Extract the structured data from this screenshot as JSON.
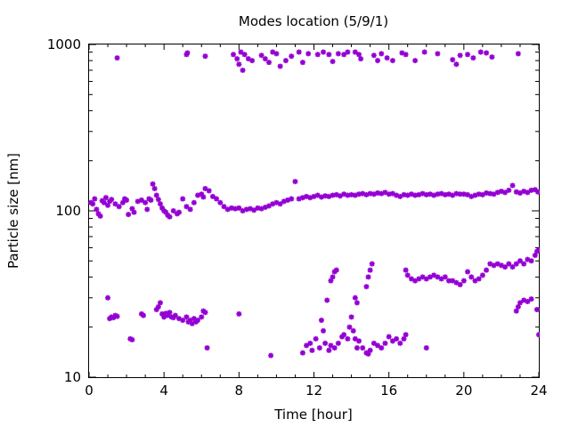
{
  "chart_data": {
    "type": "scatter",
    "title": "Modes location (5/9/1)",
    "xlabel": "Time [hour]",
    "ylabel": "Particle size [nm]",
    "xlim": [
      0,
      24
    ],
    "ylim": [
      10,
      1000
    ],
    "y_scale": "log",
    "x_ticks": [
      0,
      4,
      8,
      12,
      16,
      20,
      24
    ],
    "x_tick_labels": [
      "0",
      "4",
      "8",
      "12",
      "16",
      "20",
      "24"
    ],
    "y_ticks": [
      10,
      100,
      1000
    ],
    "y_tick_labels": [
      "10",
      "100",
      "1000"
    ],
    "grid": false,
    "marker": "asterisk",
    "color": "#9400d3",
    "series": [
      {
        "values": [
          [
            0.1,
            112
          ],
          [
            0.2,
            110
          ],
          [
            0.3,
            118
          ],
          [
            0.4,
            102
          ],
          [
            0.5,
            96
          ],
          [
            0.6,
            93
          ],
          [
            0.7,
            115
          ],
          [
            0.8,
            112
          ],
          [
            0.9,
            120
          ],
          [
            1.0,
            108
          ],
          [
            1.1,
            114
          ],
          [
            1.2,
            117
          ],
          [
            1.4,
            110
          ],
          [
            1.6,
            106
          ],
          [
            1.8,
            112
          ],
          [
            1.9,
            118
          ],
          [
            2.0,
            116
          ],
          [
            2.1,
            95
          ],
          [
            2.3,
            103
          ],
          [
            2.4,
            98
          ],
          [
            2.6,
            114
          ],
          [
            2.8,
            116
          ],
          [
            3.0,
            112
          ],
          [
            3.1,
            102
          ],
          [
            3.2,
            118
          ],
          [
            3.3,
            116
          ],
          [
            3.4,
            145
          ],
          [
            3.5,
            136
          ],
          [
            3.6,
            124
          ],
          [
            3.7,
            117
          ],
          [
            3.8,
            110
          ],
          [
            3.9,
            104
          ],
          [
            4.0,
            100
          ],
          [
            4.1,
            98
          ],
          [
            4.2,
            94
          ],
          [
            4.3,
            92
          ],
          [
            4.5,
            100
          ],
          [
            4.7,
            96
          ],
          [
            4.8,
            98
          ],
          [
            5.0,
            118
          ],
          [
            5.2,
            106
          ],
          [
            5.4,
            102
          ],
          [
            5.6,
            112
          ],
          [
            5.8,
            124
          ],
          [
            6.0,
            126
          ],
          [
            6.1,
            121
          ],
          [
            6.2,
            136
          ],
          [
            6.4,
            132
          ],
          [
            6.6,
            122
          ],
          [
            6.8,
            118
          ],
          [
            7.0,
            112
          ],
          [
            7.2,
            106
          ],
          [
            7.4,
            102
          ],
          [
            7.6,
            104
          ],
          [
            7.8,
            103
          ],
          [
            8.0,
            104
          ],
          [
            8.2,
            100
          ],
          [
            8.4,
            102
          ],
          [
            8.6,
            103
          ],
          [
            8.8,
            101
          ],
          [
            9.0,
            104
          ],
          [
            9.2,
            103
          ],
          [
            9.4,
            105
          ],
          [
            9.6,
            107
          ],
          [
            9.8,
            110
          ],
          [
            10.0,
            112
          ],
          [
            10.2,
            110
          ],
          [
            10.4,
            114
          ],
          [
            10.6,
            116
          ],
          [
            10.8,
            118
          ],
          [
            11.0,
            150
          ],
          [
            11.2,
            118
          ],
          [
            11.4,
            120
          ],
          [
            11.6,
            122
          ],
          [
            11.8,
            120
          ],
          [
            12.0,
            122
          ],
          [
            12.2,
            124
          ],
          [
            12.4,
            121
          ],
          [
            12.6,
            123
          ],
          [
            12.8,
            122
          ],
          [
            13.0,
            124
          ],
          [
            13.2,
            125
          ],
          [
            13.4,
            123
          ],
          [
            13.6,
            126
          ],
          [
            13.8,
            124
          ],
          [
            14.0,
            125
          ],
          [
            14.2,
            124
          ],
          [
            14.4,
            126
          ],
          [
            14.6,
            127
          ],
          [
            14.8,
            125
          ],
          [
            15.0,
            127
          ],
          [
            15.2,
            126
          ],
          [
            15.4,
            128
          ],
          [
            15.6,
            127
          ],
          [
            15.8,
            129
          ],
          [
            16.0,
            126
          ],
          [
            16.2,
            127
          ],
          [
            16.4,
            124
          ],
          [
            16.6,
            122
          ],
          [
            16.8,
            125
          ],
          [
            17.0,
            124
          ],
          [
            17.2,
            126
          ],
          [
            17.4,
            124
          ],
          [
            17.6,
            125
          ],
          [
            17.8,
            127
          ],
          [
            18.0,
            125
          ],
          [
            18.2,
            126
          ],
          [
            18.4,
            124
          ],
          [
            18.6,
            126
          ],
          [
            18.8,
            127
          ],
          [
            19.0,
            125
          ],
          [
            19.2,
            126
          ],
          [
            19.4,
            124
          ],
          [
            19.6,
            127
          ],
          [
            19.8,
            126
          ],
          [
            20.0,
            126
          ],
          [
            20.2,
            125
          ],
          [
            20.4,
            122
          ],
          [
            20.6,
            124
          ],
          [
            20.8,
            126
          ],
          [
            21.0,
            125
          ],
          [
            21.2,
            128
          ],
          [
            21.4,
            127
          ],
          [
            21.6,
            126
          ],
          [
            21.8,
            129
          ],
          [
            22.0,
            131
          ],
          [
            22.2,
            129
          ],
          [
            22.4,
            133
          ],
          [
            22.6,
            142
          ],
          [
            22.8,
            130
          ],
          [
            23.0,
            128
          ],
          [
            23.2,
            131
          ],
          [
            23.4,
            129
          ],
          [
            23.6,
            133
          ],
          [
            23.8,
            134
          ],
          [
            23.95,
            130
          ]
        ]
      },
      {
        "values": [
          [
            1.5,
            830
          ],
          [
            5.2,
            870
          ],
          [
            5.25,
            890
          ],
          [
            6.2,
            850
          ],
          [
            7.7,
            870
          ],
          [
            7.9,
            820
          ],
          [
            8.0,
            760
          ],
          [
            8.1,
            900
          ],
          [
            8.2,
            700
          ],
          [
            8.3,
            870
          ],
          [
            8.5,
            820
          ],
          [
            8.7,
            800
          ],
          [
            9.2,
            860
          ],
          [
            9.4,
            820
          ],
          [
            9.6,
            780
          ],
          [
            9.8,
            900
          ],
          [
            10.0,
            880
          ],
          [
            10.2,
            740
          ],
          [
            10.5,
            800
          ],
          [
            10.8,
            850
          ],
          [
            11.2,
            900
          ],
          [
            11.4,
            780
          ],
          [
            11.7,
            880
          ],
          [
            12.2,
            870
          ],
          [
            12.5,
            900
          ],
          [
            12.8,
            870
          ],
          [
            13.0,
            790
          ],
          [
            13.3,
            880
          ],
          [
            13.6,
            870
          ],
          [
            13.8,
            900
          ],
          [
            14.2,
            900
          ],
          [
            14.4,
            870
          ],
          [
            14.5,
            820
          ],
          [
            15.2,
            860
          ],
          [
            15.4,
            800
          ],
          [
            15.6,
            880
          ],
          [
            15.9,
            830
          ],
          [
            16.2,
            800
          ],
          [
            16.7,
            890
          ],
          [
            16.9,
            870
          ],
          [
            17.4,
            800
          ],
          [
            17.9,
            900
          ],
          [
            18.6,
            880
          ],
          [
            19.4,
            810
          ],
          [
            19.6,
            760
          ],
          [
            19.8,
            860
          ],
          [
            20.2,
            870
          ],
          [
            20.5,
            830
          ],
          [
            20.9,
            900
          ],
          [
            21.2,
            890
          ],
          [
            21.5,
            840
          ],
          [
            22.9,
            880
          ]
        ]
      },
      {
        "values": [
          [
            1.0,
            30
          ],
          [
            1.1,
            22.5
          ],
          [
            1.2,
            23
          ],
          [
            1.3,
            22.8
          ],
          [
            1.4,
            23.5
          ],
          [
            1.5,
            23.2
          ],
          [
            2.2,
            17
          ],
          [
            2.3,
            16.8
          ],
          [
            2.8,
            24
          ],
          [
            2.9,
            23.5
          ],
          [
            3.6,
            25.5
          ],
          [
            3.7,
            26.5
          ],
          [
            3.8,
            28
          ],
          [
            3.9,
            24
          ],
          [
            4.0,
            23
          ],
          [
            4.1,
            24.2
          ],
          [
            4.2,
            23.5
          ],
          [
            4.3,
            24.5
          ],
          [
            4.4,
            23
          ],
          [
            4.5,
            22.8
          ],
          [
            4.6,
            23.5
          ],
          [
            4.8,
            22.5
          ],
          [
            5.0,
            22
          ],
          [
            5.2,
            23
          ],
          [
            5.3,
            21.5
          ],
          [
            5.4,
            22
          ],
          [
            5.5,
            21
          ],
          [
            5.6,
            22.5
          ],
          [
            5.7,
            21.5
          ],
          [
            5.8,
            22
          ],
          [
            6.0,
            23
          ],
          [
            6.1,
            25
          ],
          [
            6.2,
            24.5
          ],
          [
            6.3,
            15
          ],
          [
            8.0,
            24
          ],
          [
            9.7,
            13.5
          ],
          [
            11.4,
            14
          ],
          [
            11.6,
            15.5
          ],
          [
            11.8,
            16
          ],
          [
            11.9,
            14.5
          ],
          [
            12.1,
            17
          ],
          [
            12.3,
            15
          ],
          [
            12.4,
            22
          ],
          [
            12.5,
            19
          ],
          [
            12.6,
            16
          ],
          [
            12.7,
            29
          ],
          [
            12.8,
            14.5
          ],
          [
            12.9,
            15.5
          ],
          [
            13.1,
            15
          ],
          [
            13.3,
            16
          ],
          [
            13.5,
            17.5
          ],
          [
            13.6,
            18
          ],
          [
            13.8,
            17
          ],
          [
            13.9,
            20
          ],
          [
            14.0,
            23
          ],
          [
            14.1,
            19
          ],
          [
            14.2,
            17
          ],
          [
            14.3,
            15
          ],
          [
            14.4,
            16.5
          ],
          [
            14.6,
            15
          ],
          [
            14.8,
            14
          ],
          [
            14.9,
            13.8
          ],
          [
            15.0,
            14.5
          ],
          [
            15.2,
            16
          ],
          [
            15.4,
            15.5
          ],
          [
            15.6,
            15
          ],
          [
            15.8,
            16
          ],
          [
            16.0,
            17.5
          ],
          [
            16.2,
            16.5
          ],
          [
            16.4,
            17
          ],
          [
            16.6,
            16
          ],
          [
            16.8,
            17
          ],
          [
            16.9,
            18
          ],
          [
            18.0,
            15
          ],
          [
            22.8,
            25
          ],
          [
            22.9,
            26.5
          ],
          [
            23.0,
            28
          ],
          [
            23.2,
            29
          ],
          [
            23.4,
            28.5
          ],
          [
            23.6,
            29.5
          ],
          [
            23.9,
            25.5
          ],
          [
            24.0,
            18
          ]
        ]
      },
      {
        "values": [
          [
            12.9,
            38
          ],
          [
            13.0,
            40
          ],
          [
            13.1,
            43
          ],
          [
            13.2,
            44
          ],
          [
            14.2,
            30
          ],
          [
            14.3,
            28
          ],
          [
            14.8,
            35
          ],
          [
            14.9,
            40
          ],
          [
            15.0,
            44
          ],
          [
            15.1,
            48
          ],
          [
            16.9,
            44
          ],
          [
            17.0,
            41
          ],
          [
            17.2,
            39
          ],
          [
            17.4,
            38
          ],
          [
            17.6,
            39
          ],
          [
            17.8,
            40
          ],
          [
            18.0,
            39
          ],
          [
            18.2,
            40
          ],
          [
            18.4,
            41
          ],
          [
            18.6,
            40
          ],
          [
            18.8,
            39
          ],
          [
            19.0,
            40
          ],
          [
            19.2,
            38
          ],
          [
            19.4,
            38
          ],
          [
            19.6,
            37
          ],
          [
            19.8,
            36
          ],
          [
            20.0,
            38
          ],
          [
            20.2,
            43
          ],
          [
            20.4,
            40
          ],
          [
            20.6,
            38
          ],
          [
            20.8,
            39
          ],
          [
            21.0,
            41
          ],
          [
            21.2,
            44
          ],
          [
            21.4,
            48
          ],
          [
            21.6,
            47
          ],
          [
            21.8,
            48
          ],
          [
            22.0,
            47
          ],
          [
            22.2,
            46
          ],
          [
            22.4,
            48
          ],
          [
            22.6,
            46
          ],
          [
            22.8,
            48
          ],
          [
            23.0,
            50
          ],
          [
            23.2,
            48
          ],
          [
            23.4,
            51
          ],
          [
            23.6,
            50
          ],
          [
            23.8,
            54
          ],
          [
            23.9,
            57
          ],
          [
            24.0,
            58
          ]
        ]
      }
    ]
  }
}
